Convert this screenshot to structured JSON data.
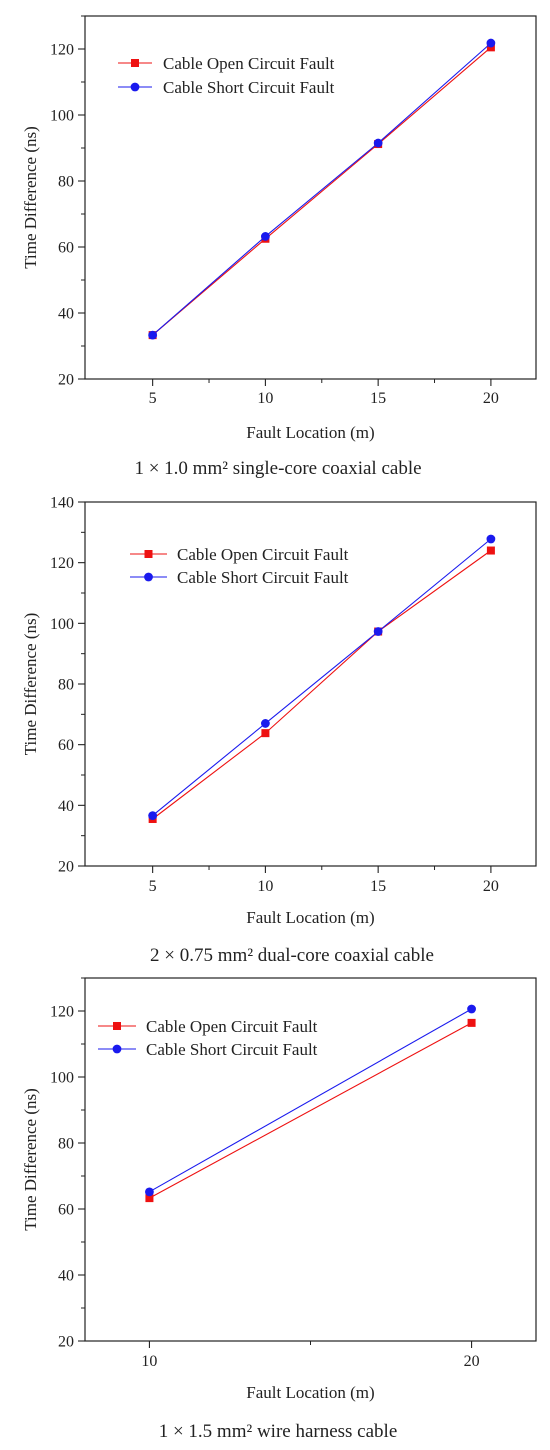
{
  "colors": {
    "open_fault": "#ee1111",
    "short_fault": "#1a1aee",
    "axis": "#222222"
  },
  "chart_data": [
    {
      "type": "line",
      "caption": "1 × 1.0 mm² single-core coaxial cable",
      "xlabel": "Fault Location (m)",
      "ylabel": "Time Difference (ns)",
      "xlim": [
        2,
        22
      ],
      "ylim": [
        20,
        130
      ],
      "x_ticks": [
        5,
        10,
        15,
        20
      ],
      "y_ticks": [
        20,
        40,
        60,
        80,
        100,
        120
      ],
      "grid": false,
      "legend_position": "top-left",
      "x": [
        5,
        10,
        15,
        20
      ],
      "series": [
        {
          "name": "Cable Open Circuit Fault",
          "marker": "square",
          "values": [
            33.3,
            62.5,
            91.2,
            120.5
          ]
        },
        {
          "name": "Cable Short Circuit Fault",
          "marker": "circle",
          "values": [
            33.3,
            63.2,
            91.5,
            121.8
          ]
        }
      ]
    },
    {
      "type": "line",
      "caption": "2 × 0.75 mm² dual-core coaxial cable",
      "xlabel": "Fault Location (m)",
      "ylabel": "Time Difference (ns)",
      "xlim": [
        2,
        22
      ],
      "ylim": [
        20,
        140
      ],
      "x_ticks": [
        5,
        10,
        15,
        20
      ],
      "y_ticks": [
        20,
        40,
        60,
        80,
        100,
        120,
        140
      ],
      "grid": false,
      "legend_position": "top-left",
      "x": [
        5,
        10,
        15,
        20
      ],
      "series": [
        {
          "name": "Cable Open Circuit Fault",
          "marker": "square",
          "values": [
            35.5,
            63.8,
            97.3,
            124.0
          ]
        },
        {
          "name": "Cable Short Circuit Fault",
          "marker": "circle",
          "values": [
            36.6,
            67.0,
            97.3,
            127.8
          ]
        }
      ]
    },
    {
      "type": "line",
      "caption": "1 × 1.5 mm² wire harness cable",
      "xlabel": "Fault Location (m)",
      "ylabel": "Time Difference (ns)",
      "xlim": [
        8,
        22
      ],
      "ylim": [
        20,
        130
      ],
      "x_ticks": [
        10,
        20
      ],
      "y_ticks": [
        20,
        40,
        60,
        80,
        100,
        120
      ],
      "grid": false,
      "legend_position": "top-left",
      "x": [
        10,
        20
      ],
      "series": [
        {
          "name": "Cable Open Circuit Fault",
          "marker": "square",
          "values": [
            63.3,
            116.4
          ]
        },
        {
          "name": "Cable Short Circuit Fault",
          "marker": "circle",
          "values": [
            65.2,
            120.6
          ]
        }
      ]
    }
  ]
}
